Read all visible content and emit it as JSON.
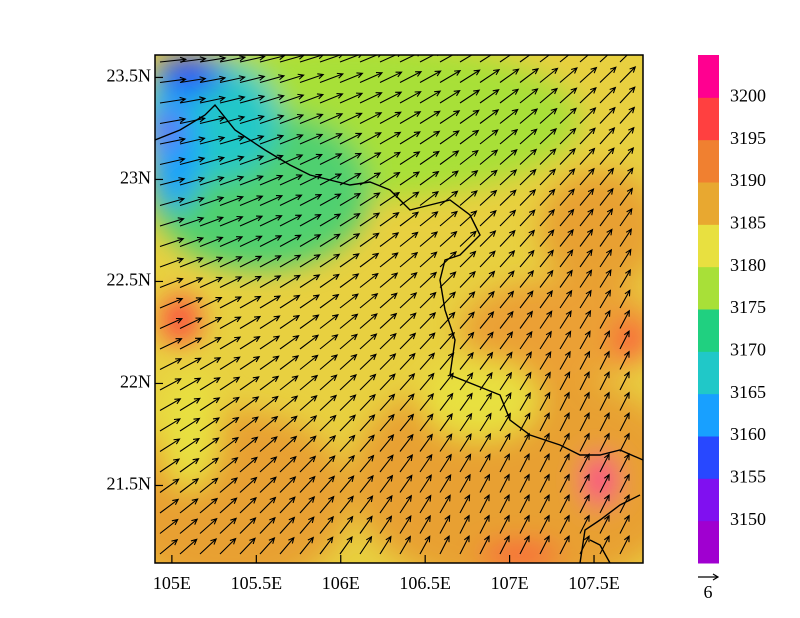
{
  "map": {
    "xlim": [
      104.9,
      107.79
    ],
    "ylim": [
      21.12,
      23.61
    ],
    "xticks": [
      {
        "value": 105,
        "label": "105E"
      },
      {
        "value": 105.5,
        "label": "105.5E"
      },
      {
        "value": 106,
        "label": "106E"
      },
      {
        "value": 106.5,
        "label": "106.5E"
      },
      {
        "value": 107,
        "label": "107E"
      },
      {
        "value": 107.5,
        "label": "107.5E"
      }
    ],
    "yticks": [
      {
        "value": 21.5,
        "label": "21.5N"
      },
      {
        "value": 22,
        "label": "22N"
      },
      {
        "value": 22.5,
        "label": "22.5N"
      },
      {
        "value": 23,
        "label": "23N"
      },
      {
        "value": 23.5,
        "label": "23.5N"
      }
    ],
    "colorbar": {
      "levels": [
        3150,
        3155,
        3160,
        3165,
        3170,
        3175,
        3180,
        3185,
        3190,
        3195,
        3200
      ],
      "colors": [
        "#a000d0",
        "#8010f0",
        "#2848ff",
        "#18a0ff",
        "#20c8c8",
        "#20d080",
        "#a8e038",
        "#e8e040",
        "#e8a830",
        "#f08030",
        "#ff4040",
        "#ff0090"
      ]
    },
    "reference_vector": 6
  }
}
